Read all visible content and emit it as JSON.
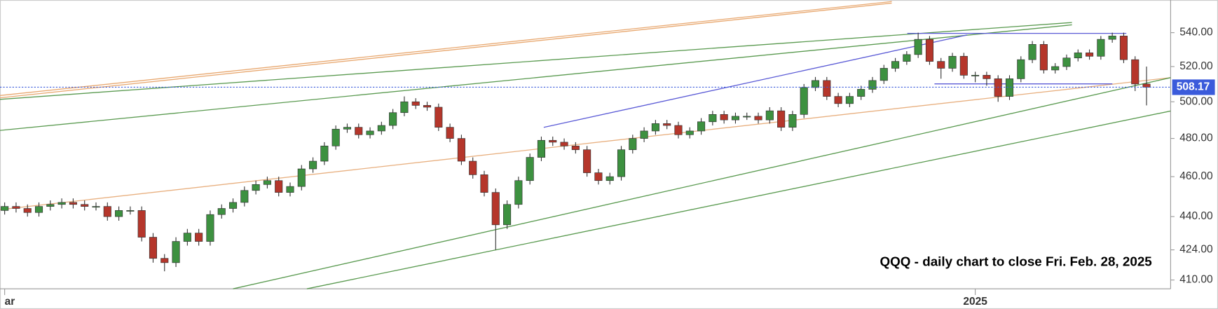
{
  "chart_data": {
    "type": "candlestick",
    "annotation": "QQQ - daily chart to close Fri. Feb. 28, 2025",
    "categories": [
      "ar",
      null,
      null,
      null,
      null,
      null,
      null,
      null,
      null,
      null,
      null,
      null,
      null,
      null,
      null,
      null,
      null,
      null,
      null,
      null,
      null,
      null,
      null,
      null,
      null,
      null,
      null,
      null,
      null,
      null,
      null,
      null,
      null,
      null,
      null,
      null,
      null,
      null,
      null,
      null,
      null,
      null,
      null,
      null,
      null,
      null,
      null,
      null,
      null,
      null,
      null,
      null,
      null,
      null,
      null,
      null,
      null,
      null,
      null,
      null,
      null,
      null,
      null,
      null,
      null,
      null,
      null,
      null,
      null,
      null,
      null,
      null,
      null,
      null,
      null,
      null,
      null,
      null,
      null,
      null,
      null,
      null,
      null,
      null,
      null,
      "2025",
      null,
      null,
      null,
      null,
      null,
      null,
      null,
      null,
      null,
      null,
      null,
      null,
      null,
      null,
      null
    ],
    "open": [
      443,
      445,
      444,
      442,
      445,
      446,
      447,
      446,
      445,
      445,
      440,
      443,
      443,
      430,
      420,
      418,
      428,
      432,
      428,
      441,
      444,
      447,
      453,
      456,
      458,
      452,
      455,
      464,
      468,
      476,
      485,
      486,
      482,
      484,
      487,
      494,
      500,
      498,
      497,
      486,
      480,
      468,
      461,
      452,
      436,
      446,
      458,
      470,
      479,
      478,
      476,
      474,
      462,
      458,
      460,
      474,
      480,
      484,
      488,
      487,
      482,
      484,
      489,
      493,
      490,
      492,
      492,
      490,
      495,
      486,
      493,
      508,
      512,
      503,
      499,
      503,
      507,
      512,
      519,
      523,
      527,
      536,
      523,
      519,
      526,
      515,
      515,
      513,
      503,
      513,
      524,
      533,
      518,
      520,
      525,
      528,
      526,
      536,
      538,
      524,
      510
    ],
    "high": [
      447,
      447,
      446,
      447,
      448,
      449,
      449,
      448,
      447,
      447,
      445,
      445,
      445,
      432,
      422,
      430,
      434,
      434,
      443,
      446,
      449,
      455,
      458,
      460,
      460,
      457,
      466,
      470,
      478,
      487,
      488,
      488,
      486,
      489,
      496,
      503,
      502,
      500,
      499,
      488,
      482,
      470,
      463,
      454,
      448,
      460,
      472,
      481,
      481,
      480,
      478,
      476,
      464,
      462,
      476,
      482,
      486,
      490,
      490,
      489,
      486,
      491,
      495,
      495,
      494,
      494,
      494,
      497,
      497,
      495,
      510,
      514,
      514,
      505,
      505,
      509,
      514,
      521,
      525,
      529,
      540,
      538,
      525,
      528,
      528,
      517,
      517,
      515,
      515,
      526,
      535,
      535,
      522,
      527,
      530,
      530,
      538,
      540,
      540,
      526,
      520
    ],
    "low": [
      441,
      442,
      440,
      440,
      443,
      444,
      444,
      443,
      443,
      438,
      438,
      441,
      428,
      418,
      414,
      416,
      426,
      426,
      426,
      439,
      442,
      445,
      451,
      454,
      450,
      450,
      453,
      462,
      466,
      474,
      483,
      480,
      480,
      482,
      485,
      492,
      496,
      495,
      484,
      478,
      466,
      459,
      450,
      424,
      434,
      444,
      456,
      468,
      476,
      474,
      472,
      460,
      456,
      456,
      458,
      472,
      478,
      482,
      485,
      480,
      480,
      482,
      487,
      488,
      488,
      490,
      488,
      488,
      484,
      484,
      491,
      506,
      501,
      497,
      497,
      501,
      505,
      510,
      517,
      521,
      525,
      521,
      513,
      517,
      513,
      511,
      509,
      500,
      501,
      511,
      522,
      516,
      516,
      518,
      523,
      524,
      524,
      534,
      522,
      506,
      498
    ],
    "close": [
      445,
      444,
      442,
      445,
      446,
      447,
      446,
      445,
      445,
      440,
      443,
      443,
      430,
      420,
      418,
      428,
      432,
      428,
      441,
      444,
      447,
      453,
      456,
      458,
      452,
      455,
      464,
      468,
      476,
      485,
      486,
      482,
      484,
      487,
      494,
      500,
      498,
      497,
      486,
      480,
      468,
      461,
      452,
      436,
      446,
      458,
      470,
      479,
      478,
      476,
      474,
      462,
      458,
      460,
      474,
      480,
      484,
      488,
      487,
      482,
      484,
      489,
      493,
      490,
      492,
      492,
      490,
      495,
      486,
      493,
      508,
      512,
      503,
      499,
      503,
      507,
      512,
      519,
      523,
      527,
      536,
      523,
      519,
      526,
      515,
      515,
      513,
      503,
      513,
      524,
      533,
      518,
      520,
      525,
      528,
      526,
      536,
      538,
      524,
      510,
      508.17
    ],
    "up_color": "#3d9140",
    "down_color": "#b5362b",
    "last_marker_color": "#3b5bdb",
    "log_scale": true,
    "ylim": [
      406,
      560
    ],
    "yticks": [
      {
        "value": 410,
        "label": "410.00"
      },
      {
        "value": 424,
        "label": "424.00"
      },
      {
        "value": 440,
        "label": "440.00"
      },
      {
        "value": 460,
        "label": "460.00"
      },
      {
        "value": 480,
        "label": "480.00"
      },
      {
        "value": 500,
        "label": "500.00"
      },
      {
        "value": 520,
        "label": "520.00"
      },
      {
        "value": 540,
        "label": "540.00"
      }
    ]
  }
}
